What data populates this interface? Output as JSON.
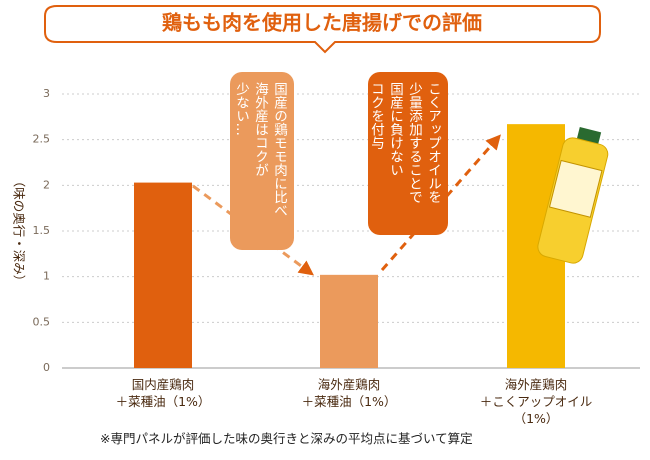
{
  "chart_data": {
    "type": "bar",
    "title": "鶏もも肉を使用した唐揚げでの評価",
    "y_label": "（味の奥行・深み）",
    "categories": [
      "国内産鶏肉\n＋菜種油（1%）",
      "海外産鶏肉\n＋菜種油（1%）",
      "海外産鶏肉\n＋こくアップオイル\n（1%）"
    ],
    "values": [
      2.03,
      1.02,
      2.67
    ],
    "colors": [
      "#e0600e",
      "#eb9a5c",
      "#f5b800"
    ],
    "ylim": [
      0,
      3
    ],
    "yticks": [
      0,
      0.5,
      1,
      1.5,
      2,
      2.5,
      3
    ],
    "grid": true,
    "annotations": [
      "国産の鶏モモ肉に比べ\n海外産はコクが\n少ない…",
      "こくアップオイルを\n少量添加することで\n国産に負けない\nコクを付与"
    ],
    "footnote": "※専門パネルが評価した味の奥行きと深みの平均点に基づいて算定"
  }
}
